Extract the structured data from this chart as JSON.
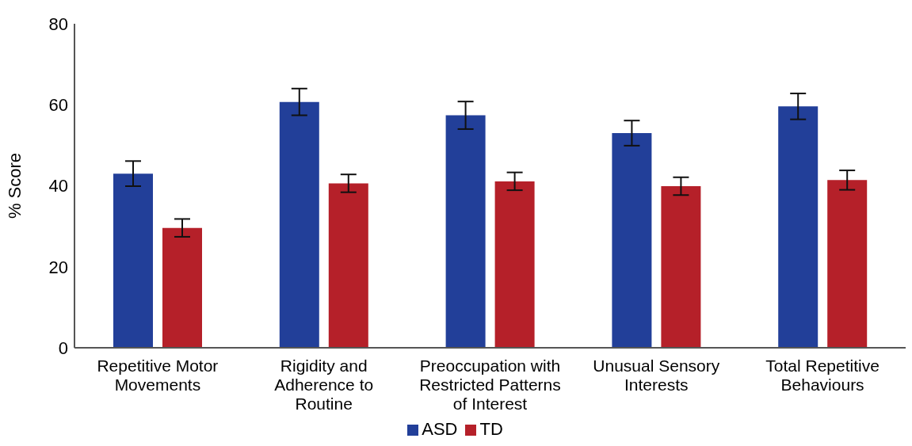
{
  "chart_data": {
    "type": "bar",
    "ylabel": "% Score",
    "categories": [
      "Repetitive Motor Movements",
      "Rigidity and Adherence to Routine",
      "Preoccupation with Restricted Patterns of Interest",
      "Unusual Sensory Interests",
      "Total Repetitive Behaviours"
    ],
    "series": [
      {
        "name": "ASD",
        "color": "#223f99",
        "values": [
          43.0,
          60.7,
          57.4,
          53.0,
          59.6
        ],
        "errors": [
          3.1,
          3.3,
          3.4,
          3.1,
          3.2
        ]
      },
      {
        "name": "TD",
        "color": "#b52029",
        "values": [
          29.6,
          40.6,
          41.1,
          39.9,
          41.4
        ],
        "errors": [
          2.2,
          2.2,
          2.2,
          2.2,
          2.4
        ]
      }
    ],
    "ylim": [
      0,
      80
    ],
    "yticks": [
      0,
      20,
      40,
      60,
      80
    ],
    "grid": false,
    "legend": "bottom"
  }
}
